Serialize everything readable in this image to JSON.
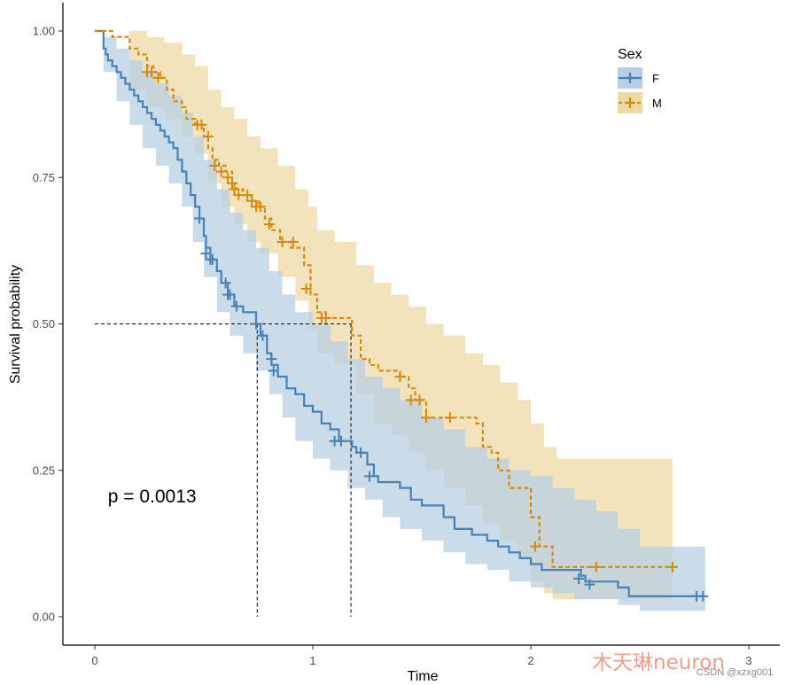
{
  "chart_data": {
    "type": "line",
    "subtype": "kaplan-meier survival curve",
    "xlabel": "Time",
    "ylabel": "Survival probability",
    "xlim": [
      -0.15,
      3.0
    ],
    "ylim": [
      -0.05,
      1.05
    ],
    "x_ticks": [
      0,
      1,
      2,
      3
    ],
    "x_tick_labels": [
      "0",
      "1",
      "2",
      "3"
    ],
    "y_ticks": [
      0.0,
      0.25,
      0.5,
      0.75,
      1.0
    ],
    "y_tick_labels": [
      "0.00",
      "0.25",
      "0.50",
      "0.75",
      "1.00"
    ],
    "grid": false,
    "annotation": "p = 0.0013",
    "annotation_pos": [
      0.06,
      0.195
    ],
    "median_lines": {
      "y": 0.5,
      "medians": [
        0.745,
        1.175
      ]
    },
    "legend": {
      "title": "Sex",
      "position": "top-right",
      "entries": [
        "F",
        "M"
      ]
    },
    "series": [
      {
        "name": "F",
        "color": "#4682b4",
        "fill": "#b8cfe3",
        "dash": false,
        "steps": [
          [
            0.0,
            1.0
          ],
          [
            0.04,
            0.97
          ],
          [
            0.05,
            0.96
          ],
          [
            0.06,
            0.95
          ],
          [
            0.08,
            0.94
          ],
          [
            0.1,
            0.93
          ],
          [
            0.12,
            0.92
          ],
          [
            0.14,
            0.91
          ],
          [
            0.16,
            0.9
          ],
          [
            0.18,
            0.89
          ],
          [
            0.2,
            0.88
          ],
          [
            0.22,
            0.87
          ],
          [
            0.24,
            0.86
          ],
          [
            0.26,
            0.85
          ],
          [
            0.28,
            0.84
          ],
          [
            0.3,
            0.83
          ],
          [
            0.32,
            0.82
          ],
          [
            0.34,
            0.81
          ],
          [
            0.36,
            0.8
          ],
          [
            0.38,
            0.78
          ],
          [
            0.4,
            0.76
          ],
          [
            0.42,
            0.74
          ],
          [
            0.44,
            0.72
          ],
          [
            0.46,
            0.7
          ],
          [
            0.48,
            0.68
          ],
          [
            0.5,
            0.65
          ],
          [
            0.51,
            0.63
          ],
          [
            0.53,
            0.61
          ],
          [
            0.56,
            0.59
          ],
          [
            0.58,
            0.57
          ],
          [
            0.61,
            0.55
          ],
          [
            0.64,
            0.53
          ],
          [
            0.68,
            0.52
          ],
          [
            0.74,
            0.5
          ],
          [
            0.76,
            0.48
          ],
          [
            0.79,
            0.45
          ],
          [
            0.81,
            0.43
          ],
          [
            0.84,
            0.41
          ],
          [
            0.88,
            0.39
          ],
          [
            0.92,
            0.38
          ],
          [
            0.96,
            0.36
          ],
          [
            1.0,
            0.35
          ],
          [
            1.04,
            0.33
          ],
          [
            1.08,
            0.32
          ],
          [
            1.12,
            0.3
          ],
          [
            1.18,
            0.29
          ],
          [
            1.2,
            0.28
          ],
          [
            1.25,
            0.26
          ],
          [
            1.28,
            0.24
          ],
          [
            1.3,
            0.23
          ],
          [
            1.4,
            0.22
          ],
          [
            1.45,
            0.2
          ],
          [
            1.5,
            0.19
          ],
          [
            1.6,
            0.17
          ],
          [
            1.65,
            0.15
          ],
          [
            1.73,
            0.14
          ],
          [
            1.8,
            0.13
          ],
          [
            1.85,
            0.12
          ],
          [
            1.9,
            0.11
          ],
          [
            1.95,
            0.1
          ],
          [
            2.0,
            0.09
          ],
          [
            2.05,
            0.08
          ],
          [
            2.23,
            0.07
          ],
          [
            2.25,
            0.06
          ],
          [
            2.4,
            0.05
          ],
          [
            2.45,
            0.035
          ],
          [
            2.8,
            0.035
          ]
        ],
        "upper": [
          [
            0.0,
            1.0
          ],
          [
            0.04,
            0.99
          ],
          [
            0.1,
            0.97
          ],
          [
            0.16,
            0.95
          ],
          [
            0.22,
            0.93
          ],
          [
            0.28,
            0.91
          ],
          [
            0.34,
            0.89
          ],
          [
            0.4,
            0.86
          ],
          [
            0.45,
            0.82
          ],
          [
            0.5,
            0.78
          ],
          [
            0.56,
            0.73
          ],
          [
            0.62,
            0.69
          ],
          [
            0.68,
            0.66
          ],
          [
            0.74,
            0.63
          ],
          [
            0.8,
            0.59
          ],
          [
            0.86,
            0.55
          ],
          [
            0.92,
            0.52
          ],
          [
            1.0,
            0.5
          ],
          [
            1.08,
            0.47
          ],
          [
            1.16,
            0.44
          ],
          [
            1.24,
            0.41
          ],
          [
            1.32,
            0.39
          ],
          [
            1.4,
            0.37
          ],
          [
            1.5,
            0.34
          ],
          [
            1.6,
            0.32
          ],
          [
            1.7,
            0.29
          ],
          [
            1.8,
            0.27
          ],
          [
            1.9,
            0.25
          ],
          [
            2.0,
            0.24
          ],
          [
            2.1,
            0.22
          ],
          [
            2.2,
            0.2
          ],
          [
            2.3,
            0.18
          ],
          [
            2.4,
            0.15
          ],
          [
            2.5,
            0.12
          ],
          [
            2.8,
            0.12
          ]
        ],
        "lower": [
          [
            0.0,
            1.0
          ],
          [
            0.04,
            0.93
          ],
          [
            0.1,
            0.88
          ],
          [
            0.16,
            0.84
          ],
          [
            0.22,
            0.8
          ],
          [
            0.28,
            0.77
          ],
          [
            0.34,
            0.74
          ],
          [
            0.4,
            0.7
          ],
          [
            0.45,
            0.64
          ],
          [
            0.5,
            0.58
          ],
          [
            0.56,
            0.52
          ],
          [
            0.62,
            0.48
          ],
          [
            0.68,
            0.45
          ],
          [
            0.74,
            0.42
          ],
          [
            0.8,
            0.38
          ],
          [
            0.86,
            0.34
          ],
          [
            0.92,
            0.3
          ],
          [
            1.0,
            0.27
          ],
          [
            1.08,
            0.25
          ],
          [
            1.16,
            0.22
          ],
          [
            1.24,
            0.2
          ],
          [
            1.32,
            0.17
          ],
          [
            1.4,
            0.15
          ],
          [
            1.5,
            0.13
          ],
          [
            1.6,
            0.11
          ],
          [
            1.7,
            0.09
          ],
          [
            1.8,
            0.08
          ],
          [
            1.9,
            0.06
          ],
          [
            2.0,
            0.05
          ],
          [
            2.1,
            0.04
          ],
          [
            2.2,
            0.03
          ],
          [
            2.4,
            0.02
          ],
          [
            2.5,
            0.01
          ],
          [
            2.8,
            0.01
          ]
        ],
        "censors": [
          [
            0.48,
            0.68
          ],
          [
            0.51,
            0.62
          ],
          [
            0.53,
            0.61
          ],
          [
            0.54,
            0.61
          ],
          [
            0.6,
            0.57
          ],
          [
            0.61,
            0.55
          ],
          [
            0.62,
            0.55
          ],
          [
            0.65,
            0.53
          ],
          [
            0.74,
            0.5
          ],
          [
            0.77,
            0.48
          ],
          [
            0.81,
            0.44
          ],
          [
            0.82,
            0.42
          ],
          [
            1.1,
            0.3
          ],
          [
            1.13,
            0.3
          ],
          [
            1.22,
            0.28
          ],
          [
            1.26,
            0.24
          ],
          [
            2.22,
            0.065
          ],
          [
            2.27,
            0.055
          ],
          [
            2.76,
            0.035
          ],
          [
            2.79,
            0.035
          ]
        ]
      },
      {
        "name": "M",
        "color": "#d48b0b",
        "fill": "#edd9a5",
        "dash": true,
        "steps": [
          [
            0.0,
            1.0
          ],
          [
            0.08,
            0.99
          ],
          [
            0.16,
            0.97
          ],
          [
            0.2,
            0.96
          ],
          [
            0.24,
            0.94
          ],
          [
            0.27,
            0.93
          ],
          [
            0.3,
            0.92
          ],
          [
            0.33,
            0.9
          ],
          [
            0.36,
            0.88
          ],
          [
            0.4,
            0.87
          ],
          [
            0.42,
            0.85
          ],
          [
            0.46,
            0.84
          ],
          [
            0.5,
            0.82
          ],
          [
            0.52,
            0.8
          ],
          [
            0.54,
            0.78
          ],
          [
            0.57,
            0.77
          ],
          [
            0.6,
            0.76
          ],
          [
            0.63,
            0.74
          ],
          [
            0.65,
            0.73
          ],
          [
            0.68,
            0.72
          ],
          [
            0.72,
            0.71
          ],
          [
            0.75,
            0.7
          ],
          [
            0.78,
            0.68
          ],
          [
            0.81,
            0.66
          ],
          [
            0.85,
            0.64
          ],
          [
            0.9,
            0.63
          ],
          [
            0.96,
            0.6
          ],
          [
            0.99,
            0.55
          ],
          [
            1.02,
            0.52
          ],
          [
            1.06,
            0.51
          ],
          [
            1.18,
            0.48
          ],
          [
            1.22,
            0.44
          ],
          [
            1.26,
            0.43
          ],
          [
            1.3,
            0.42
          ],
          [
            1.4,
            0.41
          ],
          [
            1.44,
            0.39
          ],
          [
            1.47,
            0.37
          ],
          [
            1.52,
            0.34
          ],
          [
            1.75,
            0.33
          ],
          [
            1.78,
            0.29
          ],
          [
            1.82,
            0.28
          ],
          [
            1.85,
            0.25
          ],
          [
            1.9,
            0.22
          ],
          [
            2.0,
            0.17
          ],
          [
            2.04,
            0.12
          ],
          [
            2.1,
            0.085
          ],
          [
            2.65,
            0.085
          ]
        ],
        "upper": [
          [
            0.0,
            1.0
          ],
          [
            0.16,
            1.0
          ],
          [
            0.24,
            0.99
          ],
          [
            0.32,
            0.98
          ],
          [
            0.4,
            0.96
          ],
          [
            0.46,
            0.94
          ],
          [
            0.52,
            0.9
          ],
          [
            0.58,
            0.87
          ],
          [
            0.64,
            0.85
          ],
          [
            0.7,
            0.82
          ],
          [
            0.76,
            0.8
          ],
          [
            0.84,
            0.77
          ],
          [
            0.92,
            0.73
          ],
          [
            0.98,
            0.7
          ],
          [
            1.02,
            0.66
          ],
          [
            1.1,
            0.64
          ],
          [
            1.2,
            0.6
          ],
          [
            1.28,
            0.57
          ],
          [
            1.36,
            0.55
          ],
          [
            1.44,
            0.53
          ],
          [
            1.52,
            0.5
          ],
          [
            1.6,
            0.48
          ],
          [
            1.7,
            0.45
          ],
          [
            1.78,
            0.43
          ],
          [
            1.86,
            0.4
          ],
          [
            1.94,
            0.37
          ],
          [
            2.0,
            0.33
          ],
          [
            2.06,
            0.29
          ],
          [
            2.12,
            0.27
          ],
          [
            2.65,
            0.27
          ]
        ],
        "lower": [
          [
            0.0,
            1.0
          ],
          [
            0.16,
            0.9
          ],
          [
            0.24,
            0.87
          ],
          [
            0.32,
            0.85
          ],
          [
            0.4,
            0.82
          ],
          [
            0.46,
            0.79
          ],
          [
            0.52,
            0.74
          ],
          [
            0.58,
            0.7
          ],
          [
            0.64,
            0.67
          ],
          [
            0.7,
            0.64
          ],
          [
            0.76,
            0.62
          ],
          [
            0.84,
            0.58
          ],
          [
            0.92,
            0.54
          ],
          [
            0.98,
            0.49
          ],
          [
            1.02,
            0.45
          ],
          [
            1.1,
            0.43
          ],
          [
            1.2,
            0.38
          ],
          [
            1.28,
            0.33
          ],
          [
            1.36,
            0.31
          ],
          [
            1.44,
            0.28
          ],
          [
            1.52,
            0.25
          ],
          [
            1.6,
            0.22
          ],
          [
            1.7,
            0.19
          ],
          [
            1.78,
            0.16
          ],
          [
            1.86,
            0.13
          ],
          [
            1.94,
            0.1
          ],
          [
            2.0,
            0.06
          ],
          [
            2.06,
            0.04
          ],
          [
            2.1,
            0.03
          ],
          [
            2.65,
            0.03
          ]
        ],
        "censors": [
          [
            0.24,
            0.93
          ],
          [
            0.26,
            0.93
          ],
          [
            0.29,
            0.92
          ],
          [
            0.47,
            0.84
          ],
          [
            0.49,
            0.84
          ],
          [
            0.52,
            0.82
          ],
          [
            0.55,
            0.77
          ],
          [
            0.58,
            0.76
          ],
          [
            0.61,
            0.75
          ],
          [
            0.63,
            0.74
          ],
          [
            0.64,
            0.73
          ],
          [
            0.66,
            0.72
          ],
          [
            0.7,
            0.72
          ],
          [
            0.72,
            0.71
          ],
          [
            0.74,
            0.7
          ],
          [
            0.76,
            0.7
          ],
          [
            0.8,
            0.67
          ],
          [
            0.86,
            0.64
          ],
          [
            0.91,
            0.64
          ],
          [
            0.97,
            0.56
          ],
          [
            1.04,
            0.51
          ],
          [
            1.06,
            0.51
          ],
          [
            1.4,
            0.41
          ],
          [
            1.45,
            0.37
          ],
          [
            1.49,
            0.37
          ],
          [
            1.52,
            0.34
          ],
          [
            1.63,
            0.34
          ],
          [
            2.02,
            0.12
          ],
          [
            2.3,
            0.085
          ],
          [
            2.65,
            0.085
          ]
        ]
      }
    ]
  },
  "watermark": {
    "main": "木天琳neuron",
    "source": "CSDN @xzxg001"
  }
}
